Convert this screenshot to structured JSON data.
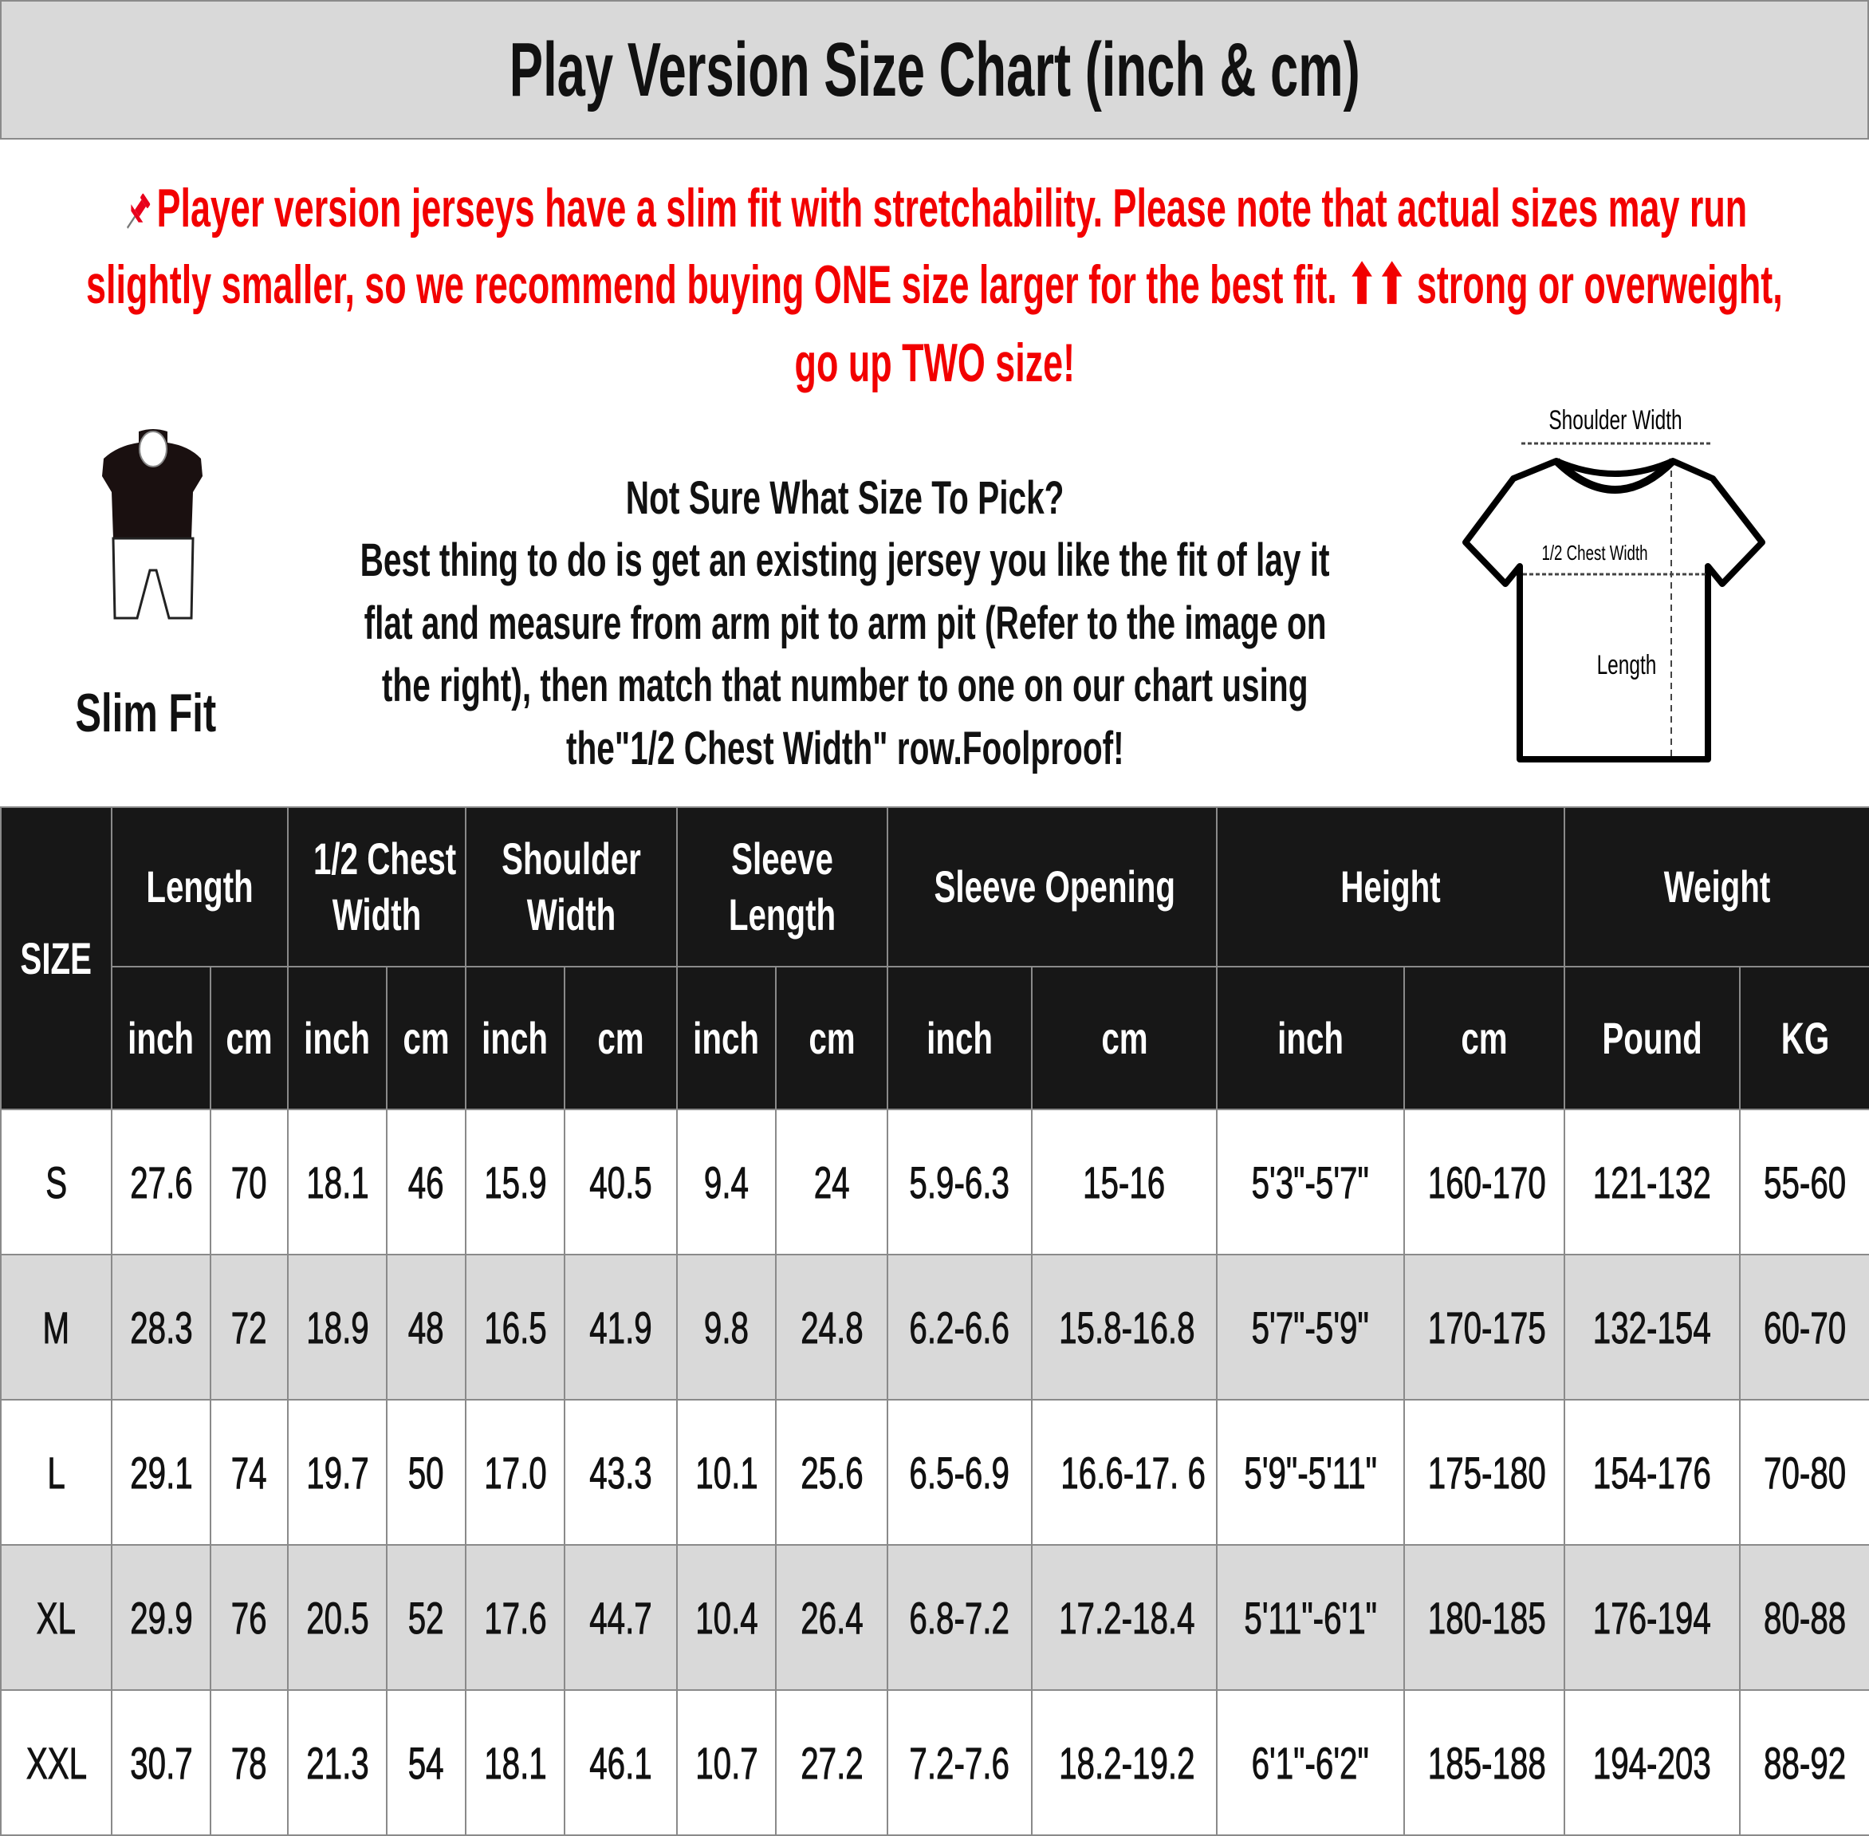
{
  "title": "Play Version Size Chart (inch & cm)",
  "note": {
    "icon": "pushpin-icon",
    "color": "#f20000",
    "lines": [
      "Player version jerseys have a slim fit with stretchability. Please note that actual sizes may run",
      "slightly smaller, so we recommend buying ONE size larger for the best fit. ⬆⬆ strong or overweight,",
      "go up TWO size!"
    ]
  },
  "fit_label": "Slim Fit",
  "advice": {
    "heading": "Not Sure What Size To Pick?",
    "lines": [
      "Best thing to do is get an existing jersey you like the fit of lay it",
      "flat and measure from arm pit to arm pit (Refer to the image on",
      "the right), then match that number to one on our chart using",
      "the\"1/2 Chest Width\" row.Foolproof!"
    ]
  },
  "diagram": {
    "shoulder_width": "Shoulder Width",
    "chest_width": "1/2 Chest Width",
    "length": "Length"
  },
  "table": {
    "size_header": "SIZE",
    "groups": [
      {
        "label_lines": [
          "Length"
        ],
        "units": [
          "inch",
          "cm"
        ]
      },
      {
        "label_lines": [
          "1/2 Chest",
          "Width"
        ],
        "units": [
          "inch",
          "cm"
        ]
      },
      {
        "label_lines": [
          "Shoulder",
          "Width"
        ],
        "units": [
          "inch",
          "cm"
        ]
      },
      {
        "label_lines": [
          "Sleeve",
          "Length"
        ],
        "units": [
          "inch",
          "cm"
        ]
      },
      {
        "label_lines": [
          "Sleeve Opening"
        ],
        "units": [
          "inch",
          "cm"
        ]
      },
      {
        "label_lines": [
          "Height"
        ],
        "units": [
          "inch",
          "cm"
        ]
      },
      {
        "label_lines": [
          "Weight"
        ],
        "units": [
          "Pound",
          "KG"
        ]
      }
    ],
    "rows": [
      [
        "S",
        "27.6",
        "70",
        "18.1",
        "46",
        "15.9",
        "40.5",
        "9.4",
        "24",
        "5.9-6.3",
        "15-16",
        "5'3\"-5'7\"",
        "160-170",
        "121-132",
        "55-60"
      ],
      [
        "M",
        "28.3",
        "72",
        "18.9",
        "48",
        "16.5",
        "41.9",
        "9.8",
        "24.8",
        "6.2-6.6",
        "15.8-16.8",
        "5'7\"-5'9\"",
        "170-175",
        "132-154",
        "60-70"
      ],
      [
        "L",
        "29.1",
        "74",
        "19.7",
        "50",
        "17.0",
        "43.3",
        "10.1",
        "25.6",
        "6.5-6.9",
        "16.6-17. 6",
        "5'9\"-5'11\"",
        "175-180",
        "154-176",
        "70-80"
      ],
      [
        "XL",
        "29.9",
        "76",
        "20.5",
        "52",
        "17.6",
        "44.7",
        "10.4",
        "26.4",
        "6.8-7.2",
        "17.2-18.4",
        "5'11\"-6'1\"",
        "180-185",
        "176-194",
        "80-88"
      ],
      [
        "XXL",
        "30.7",
        "78",
        "21.3",
        "54",
        "18.1",
        "46.1",
        "10.7",
        "27.2",
        "7.2-7.6",
        "18.2-19.2",
        "6'1\"-6'2\"",
        "185-188",
        "194-203",
        "88-92"
      ]
    ]
  }
}
